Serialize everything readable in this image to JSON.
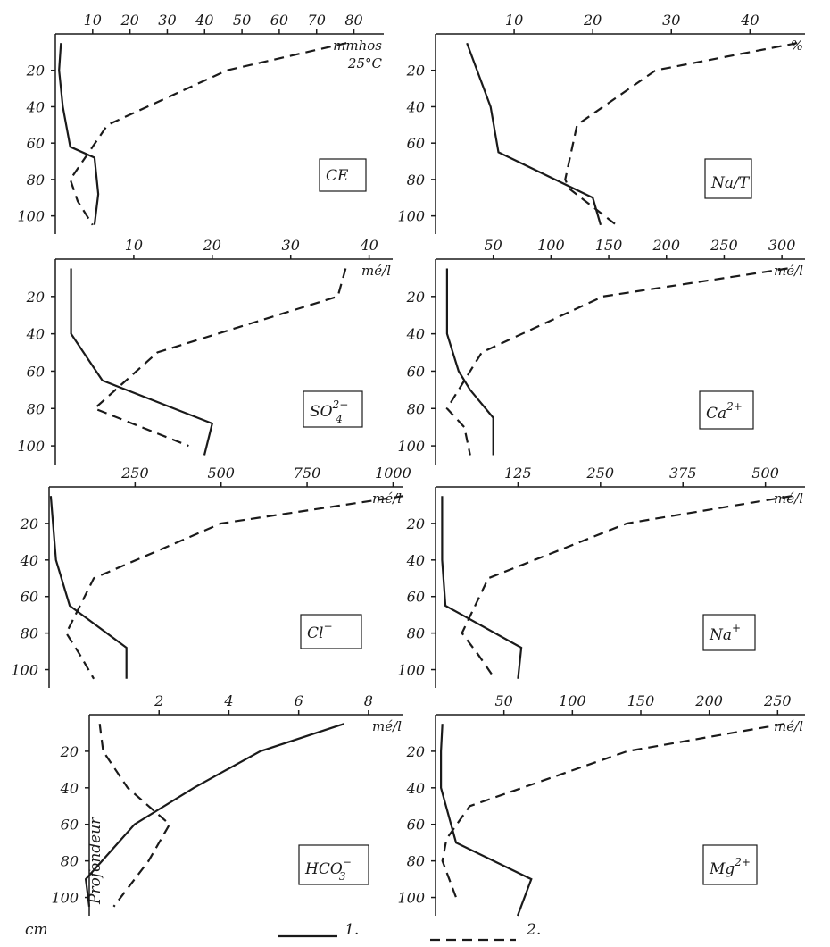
{
  "chart_data": [
    {
      "type": "line",
      "panel": "CE",
      "label": "CE",
      "unit": "mmhos",
      "unit2": "25°C",
      "xticks": [
        10,
        20,
        30,
        40,
        50,
        60,
        70,
        80
      ],
      "xlim": [
        0,
        88
      ],
      "depth_ticks": [
        20,
        40,
        60,
        80,
        100
      ],
      "ylim": [
        0,
        110
      ],
      "series": [
        {
          "name": "1.",
          "x": [
            1.5,
            1.0,
            2.0,
            4.0,
            10.5,
            11.5,
            10.5
          ],
          "y": [
            5,
            20,
            40,
            62,
            68,
            88,
            105
          ]
        },
        {
          "name": "2.",
          "x": [
            78,
            46,
            14,
            4,
            6,
            10
          ],
          "y": [
            5,
            20,
            50,
            80,
            92,
            105
          ]
        }
      ]
    },
    {
      "type": "line",
      "panel": "Na/T",
      "label": "Na/T",
      "unit": "%",
      "xticks": [
        10,
        20,
        30,
        40
      ],
      "xlim": [
        0,
        47
      ],
      "depth_ticks": [
        20,
        40,
        60,
        80,
        100
      ],
      "ylim": [
        0,
        110
      ],
      "series": [
        {
          "name": "1.",
          "x": [
            4,
            7,
            8,
            20,
            21
          ],
          "y": [
            5,
            40,
            65,
            90,
            105
          ]
        },
        {
          "name": "2.",
          "x": [
            46,
            28,
            18,
            16.5,
            17,
            20,
            23
          ],
          "y": [
            5,
            20,
            50,
            80,
            85,
            95,
            105
          ]
        }
      ]
    },
    {
      "type": "line",
      "panel": "SO4",
      "label": "SO",
      "label_sub": "4",
      "label_sup": "2−",
      "unit": "mé/l",
      "xticks": [
        10,
        20,
        30,
        40
      ],
      "xlim": [
        0,
        43
      ],
      "depth_ticks": [
        20,
        40,
        60,
        80,
        100
      ],
      "ylim": [
        0,
        110
      ],
      "series": [
        {
          "name": "1.",
          "x": [
            2,
            2,
            6,
            20,
            19
          ],
          "y": [
            5,
            40,
            65,
            88,
            105
          ]
        },
        {
          "name": "2.",
          "x": [
            37,
            36,
            13,
            5,
            17
          ],
          "y": [
            5,
            20,
            50,
            80,
            100
          ]
        }
      ]
    },
    {
      "type": "line",
      "panel": "Ca",
      "label": "Ca",
      "label_sup": "2+",
      "unit": "mé/l",
      "xticks": [
        50,
        100,
        150,
        200,
        250,
        300
      ],
      "xlim": [
        0,
        320
      ],
      "depth_ticks": [
        20,
        40,
        60,
        80,
        100
      ],
      "ylim": [
        0,
        110
      ],
      "series": [
        {
          "name": "1.",
          "x": [
            10,
            10,
            20,
            30,
            50,
            50
          ],
          "y": [
            5,
            40,
            60,
            70,
            85,
            105
          ]
        },
        {
          "name": "2.",
          "x": [
            305,
            145,
            40,
            10,
            25,
            30
          ],
          "y": [
            5,
            20,
            50,
            80,
            90,
            105
          ]
        }
      ]
    },
    {
      "type": "line",
      "panel": "Cl",
      "label": "Cl",
      "label_sup": "−",
      "unit": "mé/l",
      "xticks": [
        250,
        500,
        750,
        1000
      ],
      "xlim": [
        0,
        1030
      ],
      "depth_ticks": [
        20,
        40,
        60,
        80,
        100
      ],
      "ylim": [
        0,
        110
      ],
      "series": [
        {
          "name": "1.",
          "x": [
            5,
            20,
            60,
            225,
            225
          ],
          "y": [
            5,
            40,
            65,
            88,
            105
          ]
        },
        {
          "name": "2.",
          "x": [
            1030,
            500,
            130,
            50,
            90,
            130
          ],
          "y": [
            5,
            20,
            50,
            80,
            92,
            105
          ]
        }
      ]
    },
    {
      "type": "line",
      "panel": "Na",
      "label": "Na",
      "label_sup": "+",
      "unit": "mé/l",
      "xticks": [
        125,
        250,
        375,
        500
      ],
      "xlim": [
        0,
        560
      ],
      "depth_ticks": [
        20,
        40,
        60,
        80,
        100
      ],
      "ylim": [
        0,
        110
      ],
      "series": [
        {
          "name": "1.",
          "x": [
            10,
            10,
            15,
            40,
            130,
            125
          ],
          "y": [
            5,
            40,
            65,
            70,
            88,
            105
          ]
        },
        {
          "name": "2.",
          "x": [
            540,
            290,
            80,
            40,
            65,
            90
          ],
          "y": [
            5,
            20,
            50,
            80,
            92,
            105
          ]
        }
      ]
    },
    {
      "type": "line",
      "panel": "HCO3",
      "label": "HCO",
      "label_sub": "3",
      "label_sup": "−",
      "unit": "mé/l",
      "xticks": [
        2,
        4,
        6,
        8
      ],
      "xlim": [
        0,
        9
      ],
      "depth_ticks": [
        20,
        40,
        60,
        80,
        100
      ],
      "ylim": [
        0,
        110
      ],
      "series": [
        {
          "name": "1.",
          "x": [
            7.3,
            4.9,
            3.0,
            1.3,
            -0.1,
            0
          ],
          "y": [
            5,
            20,
            40,
            60,
            90,
            105
          ]
        },
        {
          "name": "2.",
          "x": [
            0.3,
            0.4,
            1.1,
            2.3,
            1.7,
            0.7
          ],
          "y": [
            5,
            20,
            40,
            60,
            80,
            105
          ]
        }
      ]
    },
    {
      "type": "line",
      "panel": "Mg",
      "label": "Mg",
      "label_sup": "2+",
      "unit": "mé/l",
      "xticks": [
        50,
        100,
        150,
        200,
        250
      ],
      "xlim": [
        0,
        270
      ],
      "depth_ticks": [
        20,
        40,
        60,
        80,
        100
      ],
      "ylim": [
        0,
        110
      ],
      "series": [
        {
          "name": "1.",
          "x": [
            5,
            4,
            4,
            15,
            70,
            60
          ],
          "y": [
            5,
            20,
            40,
            70,
            90,
            110
          ]
        },
        {
          "name": "2.",
          "x": [
            255,
            140,
            25,
            8,
            5,
            15
          ],
          "y": [
            5,
            20,
            50,
            68,
            80,
            100
          ]
        }
      ]
    }
  ],
  "axis_title": "Profondeur",
  "axis_unit": "cm",
  "legend": {
    "line1": "1.",
    "line2": "2."
  }
}
